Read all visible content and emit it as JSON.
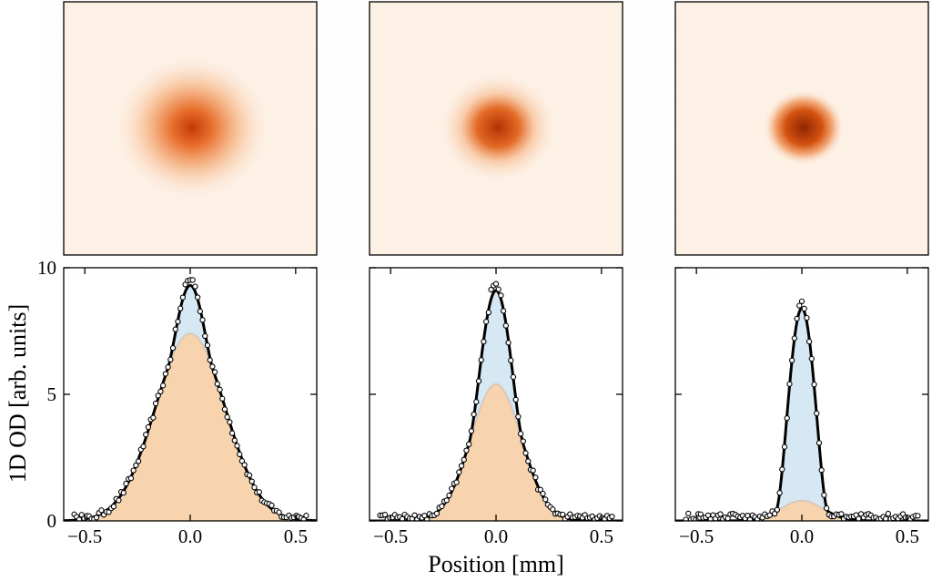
{
  "figure": {
    "xlabel": "Position [mm]",
    "ylabel": "1D OD [arb. units]"
  },
  "colors": {
    "thermal_fill": "#f8d4ae",
    "thermal_line": "#d9c8bc",
    "condensate_fill": "#d5e8f3",
    "fit_line": "#000000",
    "image_background": "#fdf1e6",
    "image_core": "#cc3c05"
  },
  "chart_data": [
    {
      "type": "image",
      "panel": "top-left",
      "description_scale": {
        "cloud_sigma": 0.22,
        "peak_intensity": 0.8
      }
    },
    {
      "type": "image",
      "panel": "top-middle",
      "description_scale": {
        "cloud_sigma": 0.15,
        "peak_intensity": 0.9
      }
    },
    {
      "type": "image",
      "panel": "top-right",
      "description_scale": {
        "cloud_sigma": 0.09,
        "peak_intensity": 0.95
      }
    },
    {
      "type": "area",
      "panel": "bottom-left",
      "xlim": [
        -0.6,
        0.6
      ],
      "ylim": [
        0,
        10
      ],
      "xticks": [
        -0.5,
        0.0,
        0.5
      ],
      "xtick_labels": [
        "−0.5",
        "0.0",
        "0.5"
      ],
      "yticks": [
        0,
        5,
        10
      ],
      "ytick_labels": [
        "0",
        "5",
        "10"
      ],
      "thermal": {
        "amplitude": 7.4,
        "sigma": 0.165
      },
      "condensate": {
        "amplitude": 1.9,
        "radius": 0.11
      },
      "data_points": {
        "count": 95,
        "x_range": [
          -0.55,
          0.55
        ]
      }
    },
    {
      "type": "area",
      "panel": "bottom-middle",
      "xlim": [
        -0.6,
        0.6
      ],
      "ylim": [
        0,
        10
      ],
      "xticks": [
        -0.5,
        0.0,
        0.5
      ],
      "xtick_labels": [
        "−0.5",
        "0.0",
        "0.5"
      ],
      "yticks": [
        0,
        5,
        10
      ],
      "ytick_labels": [
        "",
        "",
        ""
      ],
      "thermal": {
        "amplitude": 5.4,
        "sigma": 0.12
      },
      "condensate": {
        "amplitude": 3.7,
        "radius": 0.13
      },
      "data_points": {
        "count": 95,
        "x_range": [
          -0.55,
          0.55
        ]
      }
    },
    {
      "type": "area",
      "panel": "bottom-right",
      "xlim": [
        -0.6,
        0.6
      ],
      "ylim": [
        0,
        10
      ],
      "xticks": [
        -0.5,
        0.0,
        0.5
      ],
      "xtick_labels": [
        "−0.5",
        "0.0",
        "0.5"
      ],
      "yticks": [
        0,
        5,
        10
      ],
      "ytick_labels": [
        "",
        "",
        ""
      ],
      "thermal": {
        "amplitude": 0.8,
        "sigma": 0.1
      },
      "condensate": {
        "amplitude": 7.6,
        "radius": 0.125
      },
      "data_points": {
        "count": 95,
        "x_range": [
          -0.55,
          0.55
        ]
      }
    }
  ]
}
